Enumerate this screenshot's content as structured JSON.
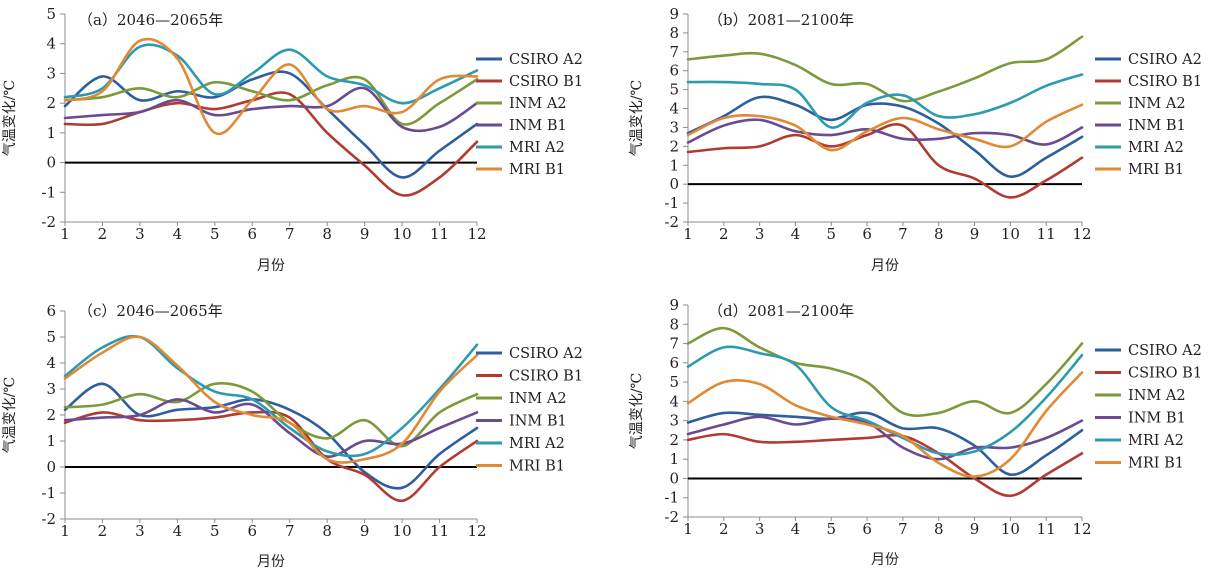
{
  "chart_data": [
    {
      "type": "line",
      "title": "（a）2046—2065年",
      "xlabel": "月份",
      "ylabel": "气温变化/℃",
      "x": [
        1,
        2,
        3,
        4,
        5,
        6,
        7,
        8,
        9,
        10,
        11,
        12
      ],
      "ylim": [
        -2,
        5
      ],
      "yticks": [
        -2,
        -1,
        0,
        1,
        2,
        3,
        4,
        5
      ],
      "series": [
        {
          "name": "CSIRO A2",
          "color": "#2e5e9e",
          "values": [
            1.9,
            2.9,
            2.1,
            2.4,
            2.2,
            2.8,
            3.0,
            1.8,
            0.6,
            -0.5,
            0.4,
            1.3
          ]
        },
        {
          "name": "CSIRO B1",
          "color": "#b13b30",
          "values": [
            1.3,
            1.3,
            1.7,
            2.0,
            1.8,
            2.1,
            2.3,
            1.0,
            -0.1,
            -1.1,
            -0.5,
            0.7
          ]
        },
        {
          "name": "INM A2",
          "color": "#7c9a3a",
          "values": [
            2.1,
            2.2,
            2.5,
            2.2,
            2.7,
            2.4,
            2.1,
            2.6,
            2.8,
            1.3,
            2.0,
            2.8
          ]
        },
        {
          "name": "INM B1",
          "color": "#6a4a91",
          "values": [
            1.5,
            1.6,
            1.7,
            2.1,
            1.6,
            1.8,
            1.9,
            1.9,
            2.5,
            1.2,
            1.2,
            2.0
          ]
        },
        {
          "name": "MRI A2",
          "color": "#2e9ab0",
          "values": [
            2.2,
            2.5,
            3.9,
            3.6,
            2.3,
            3.0,
            3.8,
            2.9,
            2.6,
            2.0,
            2.5,
            3.1
          ]
        },
        {
          "name": "MRI B1",
          "color": "#e08a35",
          "values": [
            2.1,
            2.4,
            4.1,
            3.5,
            1.0,
            2.1,
            3.3,
            1.8,
            1.9,
            1.7,
            2.8,
            2.9
          ]
        }
      ]
    },
    {
      "type": "line",
      "title": "（b）2081—2100年",
      "xlabel": "月份",
      "ylabel": "气温变化/℃",
      "x": [
        1,
        2,
        3,
        4,
        5,
        6,
        7,
        8,
        9,
        10,
        11,
        12
      ],
      "ylim": [
        -2,
        9
      ],
      "yticks": [
        -2,
        -1,
        0,
        1,
        2,
        3,
        4,
        5,
        6,
        7,
        8,
        9
      ],
      "series": [
        {
          "name": "CSIRO A2",
          "color": "#2e5e9e",
          "values": [
            2.7,
            3.6,
            4.6,
            4.2,
            3.4,
            4.2,
            4.1,
            3.2,
            1.8,
            0.4,
            1.4,
            2.5
          ]
        },
        {
          "name": "CSIRO B1",
          "color": "#b13b30",
          "values": [
            1.7,
            1.9,
            2.0,
            2.6,
            2.0,
            2.6,
            3.1,
            1.0,
            0.3,
            -0.7,
            0.2,
            1.4
          ]
        },
        {
          "name": "INM A2",
          "color": "#7c9a3a",
          "values": [
            6.6,
            6.8,
            6.9,
            6.3,
            5.3,
            5.3,
            4.4,
            4.9,
            5.6,
            6.4,
            6.6,
            7.8
          ]
        },
        {
          "name": "INM B1",
          "color": "#6a4a91",
          "values": [
            2.2,
            3.1,
            3.4,
            2.8,
            2.6,
            2.9,
            2.4,
            2.4,
            2.7,
            2.6,
            2.1,
            3.0
          ]
        },
        {
          "name": "MRI A2",
          "color": "#2e9ab0",
          "values": [
            5.4,
            5.4,
            5.3,
            5.0,
            3.0,
            4.3,
            4.7,
            3.6,
            3.7,
            4.3,
            5.2,
            5.8
          ]
        },
        {
          "name": "MRI B1",
          "color": "#e08a35",
          "values": [
            2.6,
            3.5,
            3.6,
            3.1,
            1.8,
            2.8,
            3.5,
            2.9,
            2.4,
            2.0,
            3.3,
            4.2
          ]
        }
      ]
    },
    {
      "type": "line",
      "title": "（c）2046—2065年",
      "xlabel": "月份",
      "ylabel": "气温变化/℃",
      "x": [
        1,
        2,
        3,
        4,
        5,
        6,
        7,
        8,
        9,
        10,
        11,
        12
      ],
      "ylim": [
        -2,
        6
      ],
      "yticks": [
        -2,
        -1,
        0,
        1,
        2,
        3,
        4,
        5,
        6
      ],
      "series": [
        {
          "name": "CSIRO A2",
          "color": "#2e5e9e",
          "values": [
            2.2,
            3.2,
            2.0,
            2.2,
            2.3,
            2.6,
            2.2,
            1.3,
            -0.2,
            -0.8,
            0.5,
            1.5
          ]
        },
        {
          "name": "CSIRO B1",
          "color": "#b13b30",
          "values": [
            1.7,
            2.1,
            1.8,
            1.8,
            1.9,
            2.1,
            1.9,
            0.3,
            -0.3,
            -1.3,
            0.0,
            1.0
          ]
        },
        {
          "name": "INM A2",
          "color": "#7c9a3a",
          "values": [
            2.3,
            2.4,
            2.8,
            2.5,
            3.2,
            2.9,
            1.7,
            1.1,
            1.8,
            0.8,
            2.1,
            2.8
          ]
        },
        {
          "name": "INM B1",
          "color": "#6a4a91",
          "values": [
            1.8,
            1.9,
            2.0,
            2.6,
            2.1,
            2.4,
            1.3,
            0.4,
            1.0,
            0.9,
            1.5,
            2.1
          ]
        },
        {
          "name": "MRI A2",
          "color": "#2e9ab0",
          "values": [
            3.5,
            4.6,
            5.0,
            3.8,
            2.9,
            2.6,
            1.5,
            0.6,
            0.5,
            1.5,
            3.0,
            4.7
          ]
        },
        {
          "name": "MRI B1",
          "color": "#e08a35",
          "values": [
            3.4,
            4.4,
            5.0,
            3.9,
            2.5,
            2.0,
            1.7,
            0.3,
            0.3,
            0.9,
            2.9,
            4.3
          ]
        }
      ]
    },
    {
      "type": "line",
      "title": "（d）2081—2100年",
      "xlabel": "月份",
      "ylabel": "气温变化/℃",
      "x": [
        1,
        2,
        3,
        4,
        5,
        6,
        7,
        8,
        9,
        10,
        11,
        12
      ],
      "ylim": [
        -2,
        9
      ],
      "yticks": [
        -2,
        -1,
        0,
        1,
        2,
        3,
        4,
        5,
        6,
        7,
        8,
        9
      ],
      "series": [
        {
          "name": "CSIRO A2",
          "color": "#2e5e9e",
          "values": [
            2.9,
            3.4,
            3.3,
            3.2,
            3.1,
            3.4,
            2.6,
            2.6,
            1.7,
            0.2,
            1.2,
            2.5
          ]
        },
        {
          "name": "CSIRO B1",
          "color": "#b13b30",
          "values": [
            2.0,
            2.3,
            1.9,
            1.9,
            2.0,
            2.1,
            2.2,
            1.3,
            0.0,
            -0.9,
            0.2,
            1.3
          ]
        },
        {
          "name": "INM A2",
          "color": "#7c9a3a",
          "values": [
            7.0,
            7.8,
            6.8,
            6.0,
            5.7,
            5.0,
            3.4,
            3.4,
            4.0,
            3.4,
            4.9,
            7.0
          ]
        },
        {
          "name": "INM B1",
          "color": "#6a4a91",
          "values": [
            2.3,
            2.8,
            3.2,
            2.8,
            3.1,
            2.9,
            1.6,
            1.0,
            1.6,
            1.6,
            2.1,
            3.0
          ]
        },
        {
          "name": "MRI A2",
          "color": "#2e9ab0",
          "values": [
            5.8,
            6.8,
            6.5,
            5.9,
            3.7,
            3.0,
            2.1,
            1.3,
            1.4,
            2.4,
            4.2,
            6.4
          ]
        },
        {
          "name": "MRI B1",
          "color": "#e08a35",
          "values": [
            3.9,
            5.0,
            4.9,
            3.8,
            3.2,
            2.8,
            2.2,
            0.8,
            0.1,
            1.0,
            3.5,
            5.5
          ]
        }
      ]
    }
  ]
}
